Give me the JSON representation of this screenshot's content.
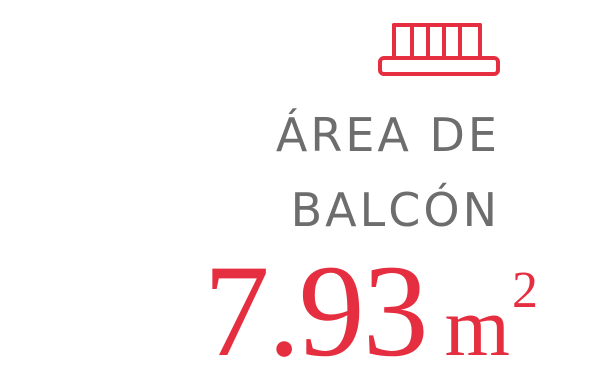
{
  "icon": "balcony-railing-icon",
  "accent_color": "#e52e40",
  "label_color": "#6d6d6d",
  "label": {
    "line1": "ÁREA DE",
    "line2": "BALCÓN"
  },
  "area": {
    "value": "7.93",
    "unit": "m",
    "exponent": "2"
  }
}
